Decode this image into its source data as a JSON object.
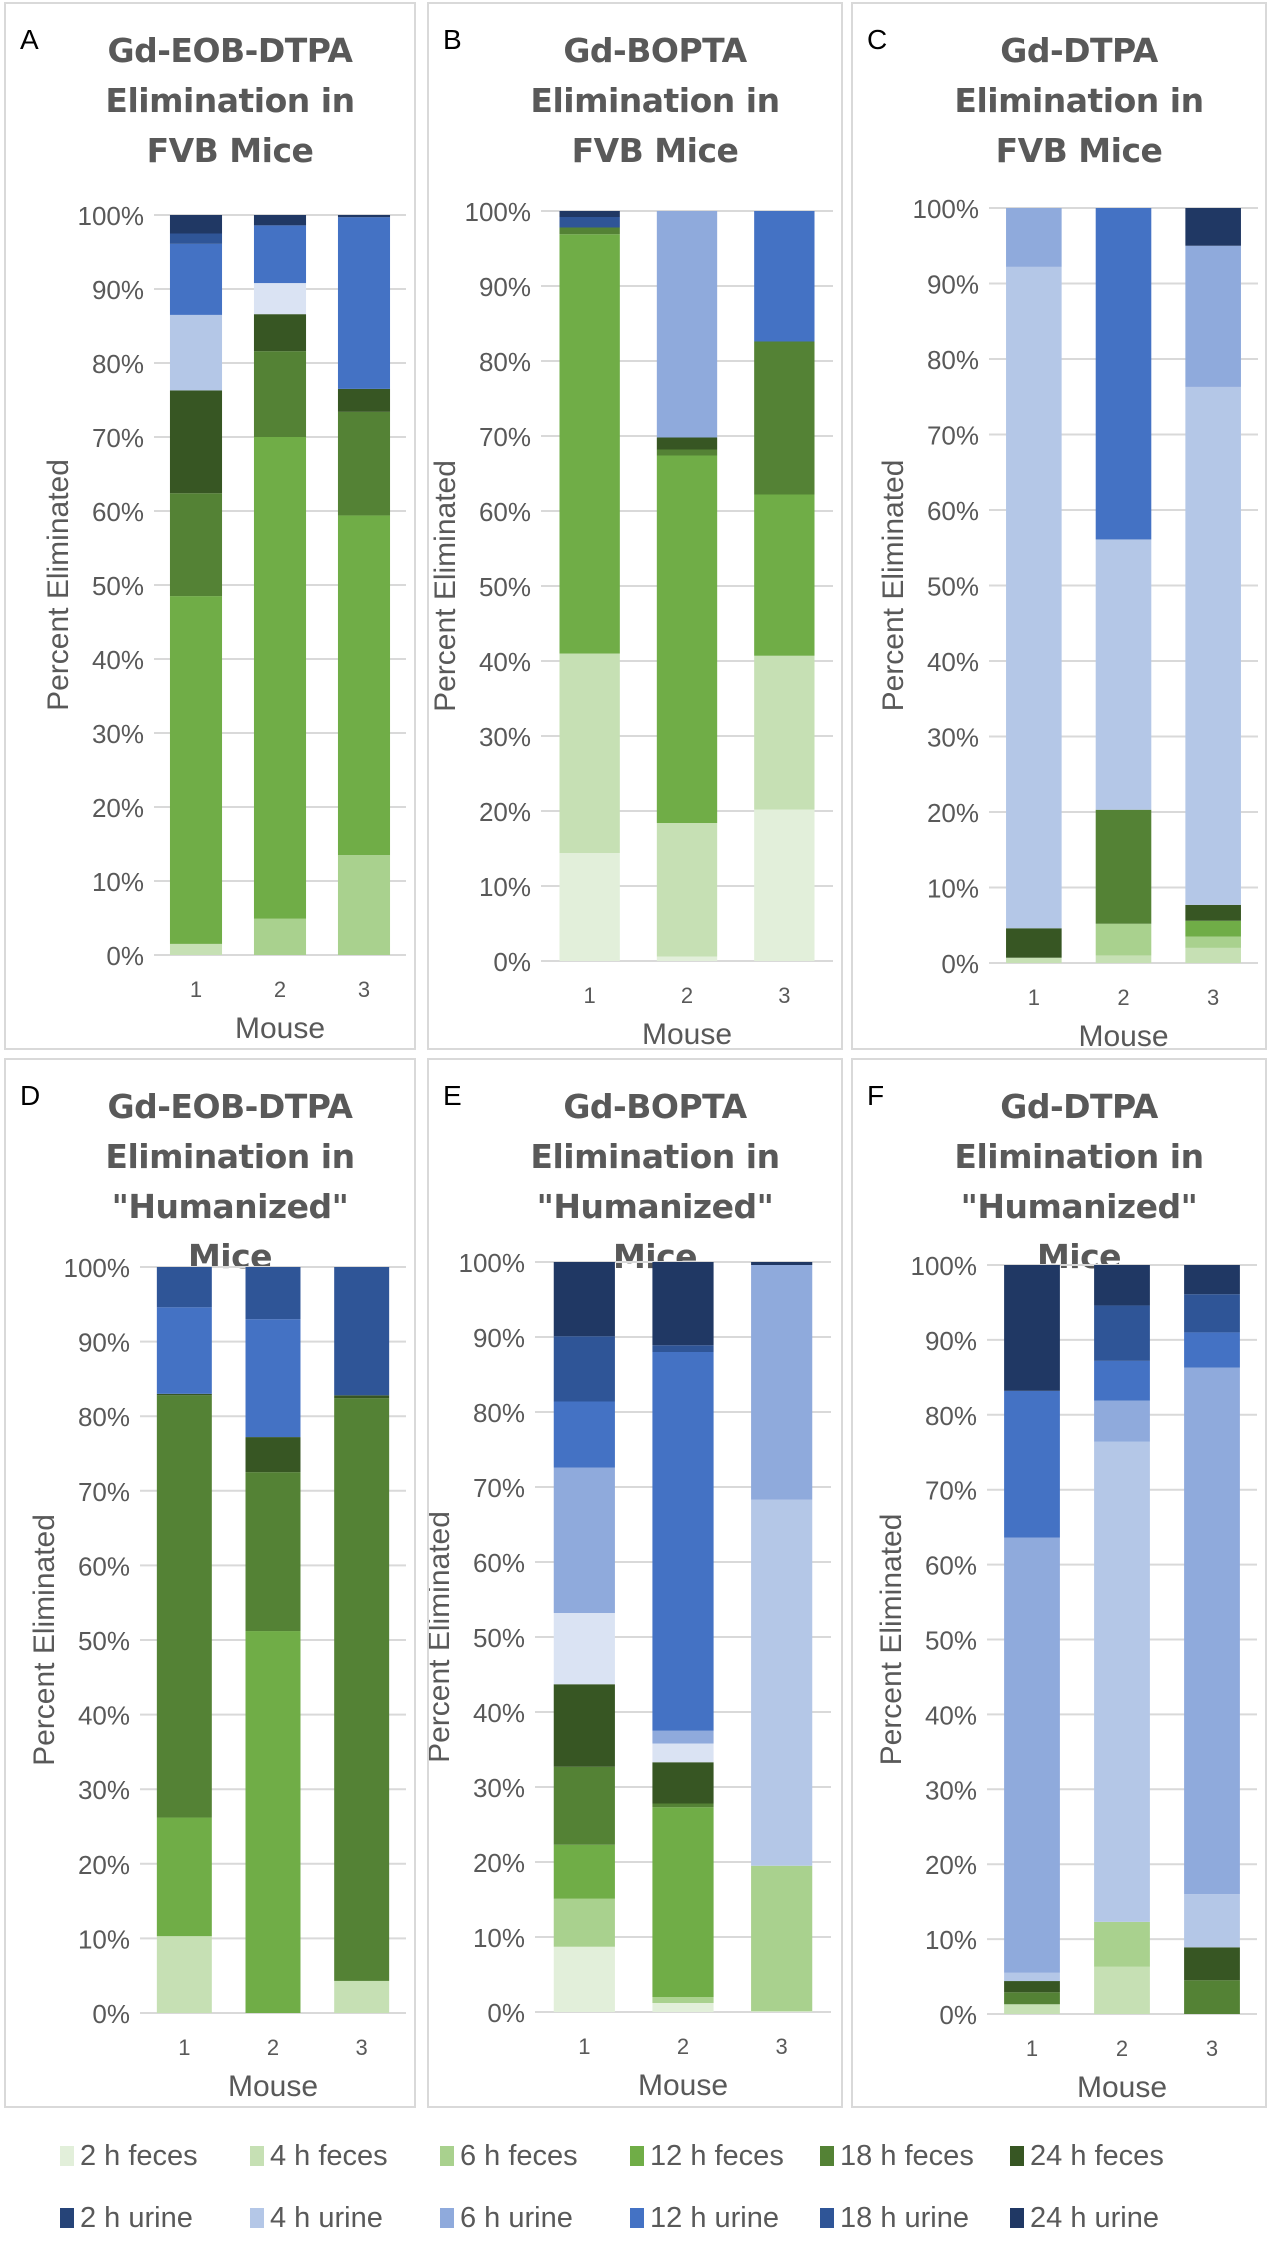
{
  "series_colors": {
    "2 h feces": "#e2efda",
    "4 h feces": "#c6e0b4",
    "6 h feces": "#a9d18e",
    "12 h feces": "#70ad47",
    "18 h feces": "#548235",
    "24 h feces": "#375623",
    "2 h urine": "#264478",
    "4 h urine": "#b4c7e7",
    "6 h urine": "#8faadc",
    "12 h urine": "#4472c4",
    "18 h urine": "#2f5597",
    "24 h urine": "#203864",
    "pale blue (unlisted)": "#dae3f3"
  },
  "legend": {
    "rows": [
      [
        "2 h feces",
        "4 h feces",
        "6 h feces",
        "12 h feces",
        "18 h feces",
        "24 h feces"
      ],
      [
        "2 h urine",
        "4 h urine",
        "6 h urine",
        "12 h urine",
        "18 h urine",
        "24 h urine"
      ]
    ]
  },
  "chart_data": [
    {
      "type": "bar",
      "stacked": "percent",
      "letter": "A",
      "title": "Gd-EOB-DTPA Elimination in FVB Mice",
      "title_lines": [
        "Gd-EOB-DTPA",
        "Elimination in",
        "FVB Mice"
      ],
      "xlabel": "Mouse",
      "ylabel": "Percent Eliminated",
      "categories": [
        "1",
        "2",
        "3"
      ],
      "ylim": [
        0,
        100
      ],
      "yticks": [
        "0%",
        "10%",
        "20%",
        "30%",
        "40%",
        "50%",
        "60%",
        "70%",
        "80%",
        "90%",
        "100%"
      ],
      "grid": true,
      "bars": [
        {
          "mouse": "1",
          "segments": [
            [
              "4 h feces",
              1.5
            ],
            [
              "12 h feces",
              47.0
            ],
            [
              "18 h feces",
              13.9
            ],
            [
              "24 h feces",
              13.9
            ],
            [
              "4 h urine",
              10.2
            ],
            [
              "12 h urine",
              9.6
            ],
            [
              "18 h urine",
              1.4
            ],
            [
              "24 h urine",
              2.5
            ]
          ]
        },
        {
          "mouse": "2",
          "segments": [
            [
              "6 h feces",
              4.9
            ],
            [
              "12 h feces",
              65.1
            ],
            [
              "18 h feces",
              11.6
            ],
            [
              "24 h feces",
              5.0
            ],
            [
              "pale blue (unlisted)",
              4.2
            ],
            [
              "12 h urine",
              7.8
            ],
            [
              "24 h urine",
              1.4
            ]
          ]
        },
        {
          "mouse": "3",
          "segments": [
            [
              "6 h feces",
              13.5
            ],
            [
              "12 h feces",
              45.9
            ],
            [
              "18 h feces",
              14.0
            ],
            [
              "24 h feces",
              3.1
            ],
            [
              "12 h urine",
              23.2
            ],
            [
              "24 h urine",
              0.3
            ]
          ]
        }
      ]
    },
    {
      "type": "bar",
      "stacked": "percent",
      "letter": "B",
      "title": "Gd-BOPTA Elimination in FVB Mice",
      "title_lines": [
        "Gd-BOPTA",
        "Elimination in",
        "FVB Mice"
      ],
      "xlabel": "Mouse",
      "ylabel": "Percent Eliminated",
      "categories": [
        "1",
        "2",
        "3"
      ],
      "ylim": [
        0,
        100
      ],
      "yticks": [
        "0%",
        "10%",
        "20%",
        "30%",
        "40%",
        "50%",
        "60%",
        "70%",
        "80%",
        "90%",
        "100%"
      ],
      "grid": true,
      "bars": [
        {
          "mouse": "1",
          "segments": [
            [
              "2 h feces",
              14.4
            ],
            [
              "4 h feces",
              26.6
            ],
            [
              "12 h feces",
              55.9
            ],
            [
              "18 h feces",
              0.9
            ],
            [
              "18 h urine",
              1.4
            ],
            [
              "24 h urine",
              0.8
            ]
          ]
        },
        {
          "mouse": "2",
          "segments": [
            [
              "2 h feces",
              0.6
            ],
            [
              "4 h feces",
              17.8
            ],
            [
              "12 h feces",
              49.0
            ],
            [
              "18 h feces",
              0.8
            ],
            [
              "24 h feces",
              1.6
            ],
            [
              "6 h urine",
              30.2
            ]
          ]
        },
        {
          "mouse": "3",
          "segments": [
            [
              "2 h feces",
              20.2
            ],
            [
              "4 h feces",
              20.5
            ],
            [
              "12 h feces",
              21.5
            ],
            [
              "18 h feces",
              20.4
            ],
            [
              "12 h urine",
              17.4
            ]
          ]
        }
      ]
    },
    {
      "type": "bar",
      "stacked": "percent",
      "letter": "C",
      "title": "Gd-DTPA Elimination in FVB Mice",
      "title_lines": [
        "Gd-DTPA",
        "Elimination in",
        "FVB Mice"
      ],
      "xlabel": "Mouse",
      "ylabel": "Percent Eliminated",
      "categories": [
        "1",
        "2",
        "3"
      ],
      "ylim": [
        0,
        100
      ],
      "yticks": [
        "0%",
        "10%",
        "20%",
        "30%",
        "40%",
        "50%",
        "60%",
        "70%",
        "80%",
        "90%",
        "100%"
      ],
      "grid": true,
      "bars": [
        {
          "mouse": "1",
          "segments": [
            [
              "4 h feces",
              0.7
            ],
            [
              "24 h feces",
              3.9
            ],
            [
              "4 h urine",
              87.6
            ],
            [
              "6 h urine",
              7.8
            ]
          ]
        },
        {
          "mouse": "2",
          "segments": [
            [
              "4 h feces",
              1.0
            ],
            [
              "6 h feces",
              4.2
            ],
            [
              "18 h feces",
              15.1
            ],
            [
              "4 h urine",
              35.8
            ],
            [
              "12 h urine",
              43.9
            ]
          ]
        },
        {
          "mouse": "3",
          "segments": [
            [
              "4 h feces",
              2.0
            ],
            [
              "6 h feces",
              1.5
            ],
            [
              "12 h feces",
              2.1
            ],
            [
              "24 h feces",
              2.1
            ],
            [
              "4 h urine",
              68.6
            ],
            [
              "6 h urine",
              18.7
            ],
            [
              "24 h urine",
              5.0
            ]
          ]
        }
      ]
    },
    {
      "type": "bar",
      "stacked": "percent",
      "letter": "D",
      "title": "Gd-EOB-DTPA Elimination in \"Humanized\" Mice",
      "title_lines": [
        "Gd-EOB-DTPA",
        "Elimination in",
        "\"Humanized\"",
        "Mice"
      ],
      "xlabel": "Mouse",
      "ylabel": "Percent Eliminated",
      "categories": [
        "1",
        "2",
        "3"
      ],
      "ylim": [
        0,
        100
      ],
      "yticks": [
        "0%",
        "10%",
        "20%",
        "30%",
        "40%",
        "50%",
        "60%",
        "70%",
        "80%",
        "90%",
        "100%"
      ],
      "grid": true,
      "bars": [
        {
          "mouse": "1",
          "segments": [
            [
              "4 h feces",
              10.3
            ],
            [
              "12 h feces",
              15.9
            ],
            [
              "18 h feces",
              56.6
            ],
            [
              "24 h feces",
              0.2
            ],
            [
              "12 h urine",
              11.6
            ],
            [
              "18 h urine",
              5.4
            ]
          ]
        },
        {
          "mouse": "2",
          "segments": [
            [
              "12 h feces",
              51.2
            ],
            [
              "18 h feces",
              21.3
            ],
            [
              "24 h feces",
              4.7
            ],
            [
              "12 h urine",
              15.8
            ],
            [
              "18 h urine",
              7.0
            ]
          ]
        },
        {
          "mouse": "3",
          "segments": [
            [
              "4 h feces",
              4.3
            ],
            [
              "18 h feces",
              78.1
            ],
            [
              "24 h feces",
              0.4
            ],
            [
              "18 h urine",
              17.2
            ]
          ]
        }
      ]
    },
    {
      "type": "bar",
      "stacked": "percent",
      "letter": "E",
      "title": "Gd-BOPTA Elimination in \"Humanized\" Mice",
      "title_lines": [
        "Gd-BOPTA",
        "Elimination in",
        "\"Humanized\"",
        "Mice"
      ],
      "xlabel": "Mouse",
      "ylabel": "Percent Eliminated",
      "categories": [
        "1",
        "2",
        "3"
      ],
      "ylim": [
        0,
        100
      ],
      "yticks": [
        "0%",
        "10%",
        "20%",
        "30%",
        "40%",
        "50%",
        "60%",
        "70%",
        "80%",
        "90%",
        "100%"
      ],
      "grid": true,
      "bars": [
        {
          "mouse": "1",
          "segments": [
            [
              "2 h feces",
              8.7
            ],
            [
              "6 h feces",
              6.4
            ],
            [
              "12 h feces",
              7.2
            ],
            [
              "18 h feces",
              10.4
            ],
            [
              "24 h feces",
              11.0
            ],
            [
              "pale blue (unlisted)",
              9.5
            ],
            [
              "6 h urine",
              19.4
            ],
            [
              "12 h urine",
              8.8
            ],
            [
              "18 h urine",
              8.7
            ],
            [
              "24 h urine",
              9.9
            ]
          ]
        },
        {
          "mouse": "2",
          "segments": [
            [
              "2 h feces",
              1.2
            ],
            [
              "6 h feces",
              0.8
            ],
            [
              "12 h feces",
              25.3
            ],
            [
              "18 h feces",
              0.5
            ],
            [
              "24 h feces",
              5.5
            ],
            [
              "pale blue (unlisted)",
              2.5
            ],
            [
              "6 h urine",
              1.7
            ],
            [
              "12 h urine",
              50.5
            ],
            [
              "18 h urine",
              0.9
            ],
            [
              "24 h urine",
              11.1
            ]
          ]
        },
        {
          "mouse": "3",
          "segments": [
            [
              "2 h feces",
              0.1
            ],
            [
              "6 h feces",
              19.4
            ],
            [
              "4 h urine",
              48.8
            ],
            [
              "6 h urine",
              31.3
            ],
            [
              "24 h urine",
              0.4
            ]
          ]
        }
      ]
    },
    {
      "type": "bar",
      "stacked": "percent",
      "letter": "F",
      "title": "Gd-DTPA Elimination in \"Humanized\" Mice",
      "title_lines": [
        "Gd-DTPA",
        "Elimination in",
        "\"Humanized\"",
        "Mice"
      ],
      "xlabel": "Mouse",
      "ylabel": "Percent Eliminated",
      "categories": [
        "1",
        "2",
        "3"
      ],
      "ylim": [
        0,
        100
      ],
      "yticks": [
        "0%",
        "10%",
        "20%",
        "30%",
        "40%",
        "50%",
        "60%",
        "70%",
        "80%",
        "90%",
        "100%"
      ],
      "grid": true,
      "bars": [
        {
          "mouse": "1",
          "segments": [
            [
              "4 h feces",
              1.3
            ],
            [
              "18 h feces",
              1.6
            ],
            [
              "24 h feces",
              1.5
            ],
            [
              "4 h urine",
              1.1
            ],
            [
              "6 h urine",
              58.1
            ],
            [
              "12 h urine",
              19.6
            ],
            [
              "24 h urine",
              16.8
            ]
          ]
        },
        {
          "mouse": "2",
          "segments": [
            [
              "4 h feces",
              6.3
            ],
            [
              "6 h feces",
              6.0
            ],
            [
              "4 h urine",
              64.1
            ],
            [
              "6 h urine",
              5.5
            ],
            [
              "12 h urine",
              5.3
            ],
            [
              "18 h urine",
              7.4
            ],
            [
              "24 h urine",
              5.4
            ]
          ]
        },
        {
          "mouse": "3",
          "segments": [
            [
              "18 h feces",
              4.5
            ],
            [
              "24 h feces",
              4.4
            ],
            [
              "4 h urine",
              7.1
            ],
            [
              "6 h urine",
              70.3
            ],
            [
              "12 h urine",
              4.7
            ],
            [
              "18 h urine",
              5.1
            ],
            [
              "24 h urine",
              3.9
            ]
          ]
        }
      ]
    }
  ]
}
